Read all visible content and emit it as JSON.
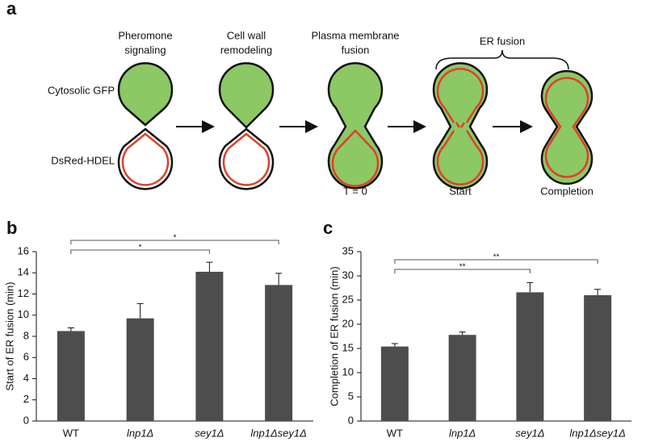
{
  "figure": {
    "panel_labels": [
      "a",
      "b",
      "c"
    ]
  },
  "diagram": {
    "stage_titles": [
      [
        "Pheromone",
        "signaling"
      ],
      [
        "Cell wall",
        "remodeling"
      ],
      [
        "Plasma membrane",
        "fusion"
      ]
    ],
    "bracket_label": "ER fusion",
    "row_labels": [
      "Cytosolic GFP",
      "DsRed-HDEL"
    ],
    "time_labels": [
      "T = 0",
      "Start",
      "Completion"
    ]
  },
  "chart_data": [
    {
      "type": "bar",
      "ylabel": "Start of ER fusion (min)",
      "categories": [
        "WT",
        "lnp1Δ",
        "sey1Δ",
        "lnp1Δsey1Δ"
      ],
      "category_style": [
        "normal",
        "italic",
        "italic",
        "italic"
      ],
      "values": [
        8.5,
        9.7,
        14.1,
        12.85
      ],
      "errors": [
        0.3,
        1.4,
        0.9,
        1.1
      ],
      "color": "#4d4d4d",
      "ylim": [
        0,
        16
      ],
      "yticks": [
        0,
        2,
        4,
        6,
        8,
        10,
        12,
        14,
        16
      ],
      "significance": [
        {
          "label": "*",
          "categories": [
            "WT",
            "sey1Δ"
          ]
        },
        {
          "label": "*",
          "categories": [
            "WT",
            "lnp1Δsey1Δ"
          ]
        }
      ]
    },
    {
      "type": "bar",
      "ylabel": "Completion of ER fusion (min)",
      "categories": [
        "WT",
        "lnp1Δ",
        "sey1Δ",
        "lnp1Δsey1Δ"
      ],
      "category_style": [
        "normal",
        "italic",
        "italic",
        "italic"
      ],
      "values": [
        15.4,
        17.8,
        26.6,
        26.0
      ],
      "errors": [
        0.6,
        0.6,
        2.0,
        1.2
      ],
      "color": "#4d4d4d",
      "ylim": [
        0,
        35
      ],
      "yticks": [
        0,
        5,
        10,
        15,
        20,
        25,
        30,
        35
      ],
      "significance": [
        {
          "label": "**",
          "categories": [
            "WT",
            "sey1Δ"
          ]
        },
        {
          "label": "**",
          "categories": [
            "WT",
            "lnp1Δsey1Δ"
          ]
        }
      ]
    }
  ]
}
